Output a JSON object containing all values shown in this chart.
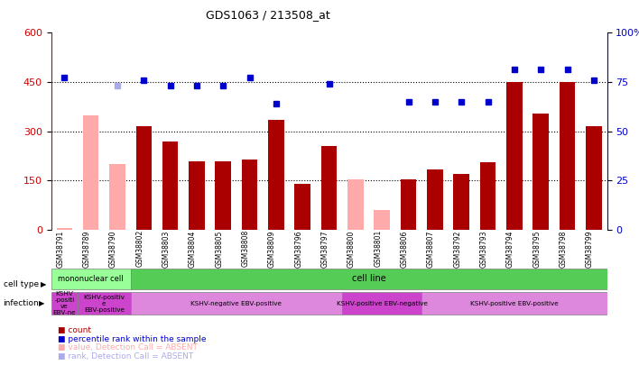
{
  "title": "GDS1063 / 213508_at",
  "samples": [
    "GSM38791",
    "GSM38789",
    "GSM38790",
    "GSM38802",
    "GSM38803",
    "GSM38804",
    "GSM38805",
    "GSM38808",
    "GSM38809",
    "GSM38796",
    "GSM38797",
    "GSM38800",
    "GSM38801",
    "GSM38806",
    "GSM38807",
    "GSM38792",
    "GSM38793",
    "GSM38794",
    "GSM38795",
    "GSM38798",
    "GSM38799"
  ],
  "bar_values": [
    5,
    350,
    200,
    315,
    270,
    210,
    210,
    215,
    335,
    140,
    255,
    155,
    60,
    155,
    185,
    170,
    205,
    450,
    355,
    450,
    315
  ],
  "bar_absent": [
    true,
    true,
    true,
    false,
    false,
    false,
    false,
    false,
    false,
    false,
    false,
    true,
    true,
    false,
    false,
    false,
    false,
    false,
    false,
    false,
    false
  ],
  "dot_values": [
    465,
    null,
    440,
    455,
    440,
    440,
    440,
    465,
    385,
    null,
    445,
    null,
    null,
    390,
    390,
    390,
    390,
    490,
    490,
    490,
    455
  ],
  "dot_absent": [
    false,
    false,
    true,
    false,
    false,
    false,
    false,
    false,
    false,
    true,
    false,
    true,
    true,
    false,
    false,
    false,
    false,
    false,
    false,
    false,
    false
  ],
  "ylim_left": [
    0,
    600
  ],
  "ylim_right": [
    0,
    100
  ],
  "yticks_left": [
    0,
    150,
    300,
    450,
    600
  ],
  "yticks_right": [
    0,
    25,
    50,
    75,
    100
  ],
  "ytick_labels_right": [
    "0",
    "25",
    "50",
    "75",
    "100%"
  ],
  "bar_color_present": "#aa0000",
  "bar_color_absent": "#ffaaaa",
  "dot_color_present": "#0000cc",
  "dot_color_absent": "#aaaaee",
  "cell_type_color_mono": "#99ff99",
  "cell_type_color_line": "#55cc55",
  "legend_items": [
    {
      "label": "count",
      "color": "#aa0000"
    },
    {
      "label": "percentile rank within the sample",
      "color": "#0000cc"
    },
    {
      "label": "value, Detection Call = ABSENT",
      "color": "#ffaaaa"
    },
    {
      "label": "rank, Detection Call = ABSENT",
      "color": "#aaaaee"
    }
  ]
}
